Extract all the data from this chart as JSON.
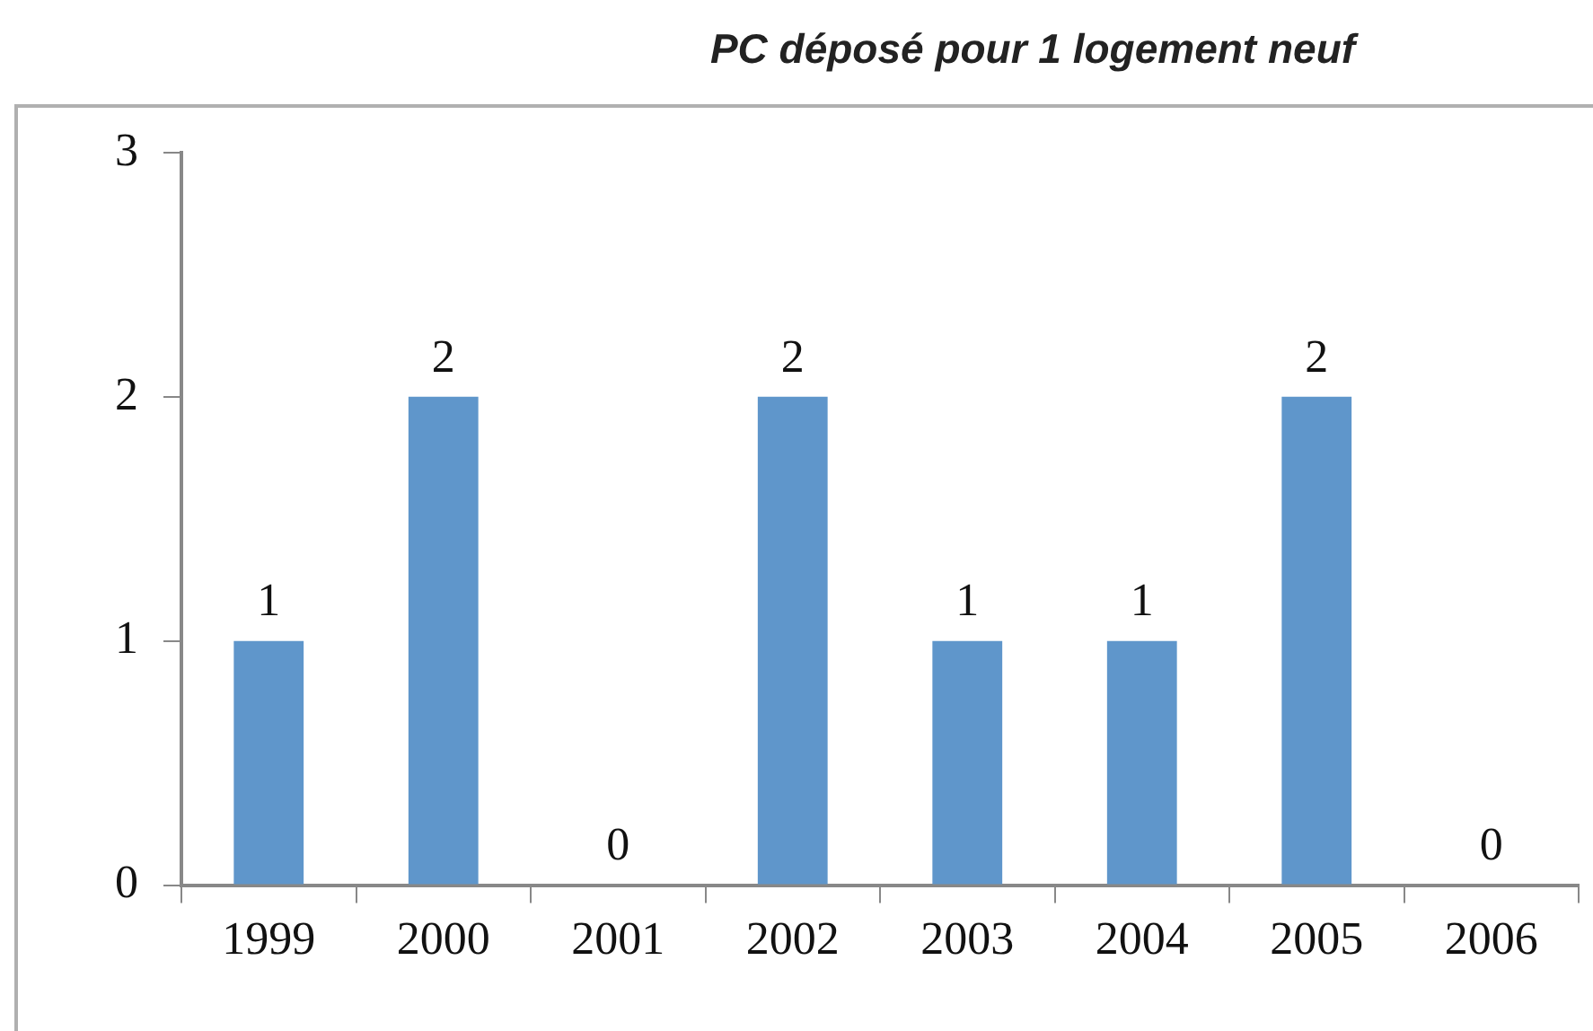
{
  "chart_data": {
    "type": "bar",
    "title": "PC déposé pour 1 logement neuf",
    "categories": [
      "1999",
      "2000",
      "2001",
      "2002",
      "2003",
      "2004",
      "2005",
      "2006"
    ],
    "values": [
      1,
      2,
      0,
      2,
      1,
      1,
      2,
      0
    ],
    "color": "#5f96cb",
    "ylim": [
      0,
      3
    ],
    "yticks": [
      0,
      1,
      2,
      3
    ],
    "grid": false,
    "data_labels": true
  }
}
